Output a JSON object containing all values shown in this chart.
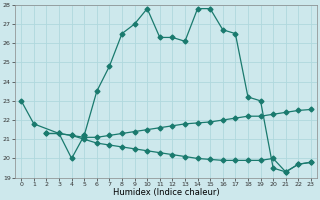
{
  "xlabel": "Humidex (Indice chaleur)",
  "xlim": [
    -0.5,
    23.5
  ],
  "ylim": [
    19,
    28
  ],
  "yticks": [
    19,
    20,
    21,
    22,
    23,
    24,
    25,
    26,
    27,
    28
  ],
  "xticks": [
    0,
    1,
    2,
    3,
    4,
    5,
    6,
    7,
    8,
    9,
    10,
    11,
    12,
    13,
    14,
    15,
    16,
    17,
    18,
    19,
    20,
    21,
    22,
    23
  ],
  "bg_color": "#cde8ec",
  "grid_color": "#b0d8dd",
  "line_color": "#1a7a6e",
  "curve1_x": [
    0,
    1,
    3,
    4,
    5
  ],
  "curve1_y": [
    23.0,
    21.8,
    21.3,
    20.0,
    21.2
  ],
  "curve2_x": [
    5,
    6,
    7,
    8,
    9,
    10,
    11,
    12,
    13,
    14,
    15,
    16,
    17,
    18,
    19,
    20,
    21,
    22,
    23
  ],
  "curve2_y": [
    21.2,
    23.5,
    24.8,
    26.5,
    27.0,
    27.8,
    26.3,
    26.3,
    26.1,
    27.8,
    27.8,
    26.7,
    26.5,
    23.2,
    23.0,
    19.5,
    19.3,
    19.7,
    19.8
  ],
  "curve3_x": [
    2,
    3,
    4,
    5,
    6,
    7,
    8,
    9,
    10,
    11,
    12,
    13,
    14,
    15,
    16,
    17,
    18,
    19,
    20,
    21,
    22,
    23
  ],
  "curve3_y": [
    21.3,
    21.3,
    21.2,
    21.1,
    21.1,
    21.2,
    21.3,
    21.4,
    21.5,
    21.6,
    21.7,
    21.8,
    21.85,
    21.9,
    22.0,
    22.1,
    22.2,
    22.2,
    22.3,
    22.4,
    22.5,
    22.55
  ],
  "curve4_x": [
    2,
    3,
    4,
    5,
    6,
    7,
    8,
    9,
    10,
    11,
    12,
    13,
    14,
    15,
    16,
    17,
    18,
    19,
    20,
    21,
    22,
    23
  ],
  "curve4_y": [
    21.3,
    21.3,
    21.2,
    21.0,
    20.8,
    20.7,
    20.6,
    20.5,
    20.4,
    20.3,
    20.2,
    20.1,
    20.0,
    19.95,
    19.9,
    19.9,
    19.9,
    19.9,
    20.0,
    19.3,
    19.7,
    19.8
  ]
}
